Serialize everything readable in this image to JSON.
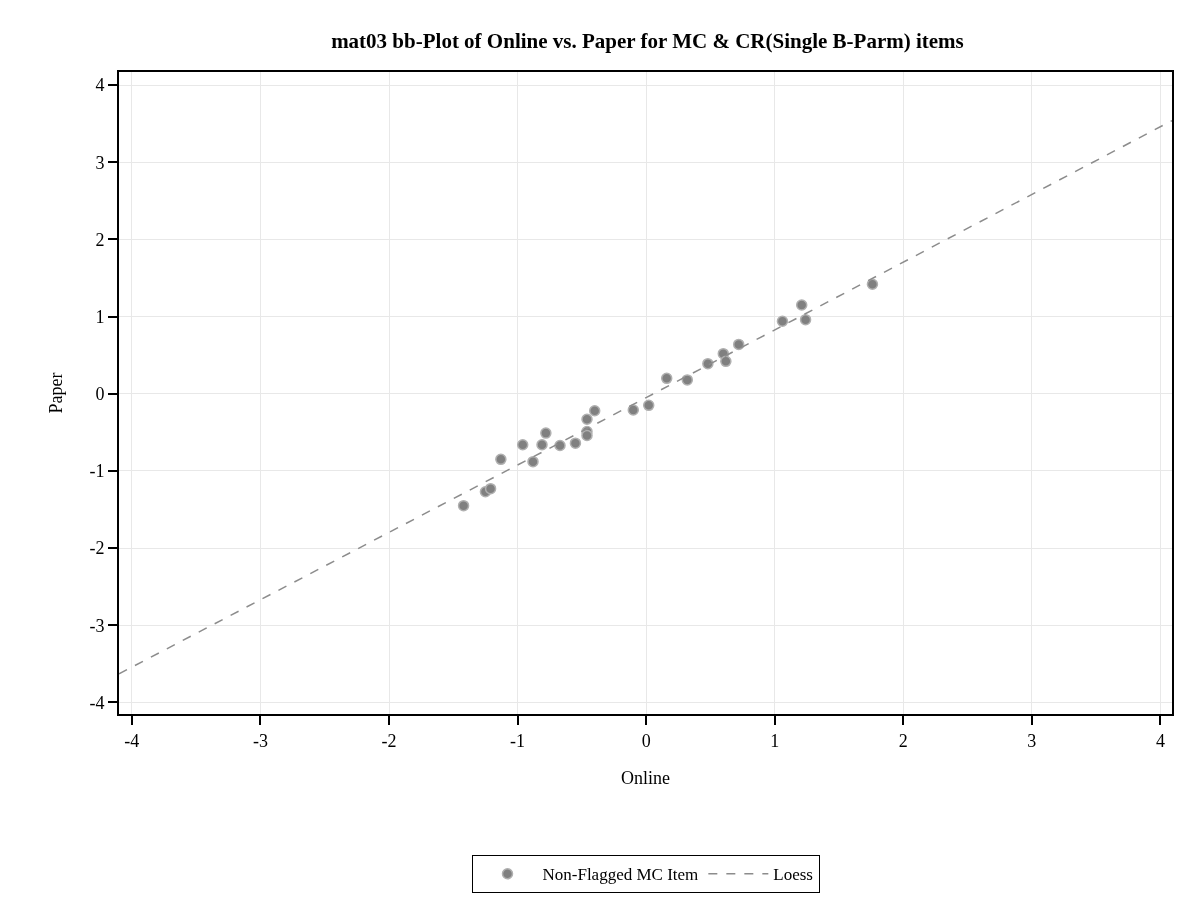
{
  "chart_data": {
    "type": "scatter",
    "title": "mat03 bb-Plot of Online vs. Paper for MC & CR(Single B-Parm) items",
    "xlabel": "Online",
    "ylabel": "Paper",
    "series": [
      {
        "name": "Non-Flagged MC Item",
        "color": "#808080",
        "marker": "circle",
        "x": [
          -1.42,
          -1.25,
          -1.21,
          -1.13,
          -0.96,
          -0.88,
          -0.81,
          -0.78,
          -0.67,
          -0.55,
          -0.46,
          -0.46,
          -0.46,
          -0.4,
          -0.1,
          0.02,
          0.16,
          0.32,
          0.48,
          0.6,
          0.62,
          0.72,
          1.06,
          1.21,
          1.24,
          1.76
        ],
        "values": [
          -1.45,
          -1.27,
          -1.23,
          -0.85,
          -0.66,
          -0.88,
          -0.66,
          -0.51,
          -0.67,
          -0.64,
          -0.33,
          -0.49,
          -0.54,
          -0.22,
          -0.21,
          -0.15,
          0.2,
          0.18,
          0.39,
          0.52,
          0.42,
          0.64,
          0.94,
          1.15,
          0.96,
          1.42
        ]
      },
      {
        "name": "Loess",
        "type": "line",
        "color": "#8c8c8c",
        "line_style": "dashed",
        "x": [
          -4.1,
          0,
          4.09
        ],
        "values": [
          -3.63,
          -0.05,
          3.54
        ]
      }
    ],
    "xlim": [
      -4.1,
      4.09
    ],
    "ylim": [
      -4.15,
      4.17
    ],
    "xticks": [
      -4,
      -3,
      -2,
      -1,
      0,
      1,
      2,
      3,
      4
    ],
    "yticks": [
      -4,
      -3,
      -2,
      -1,
      0,
      1,
      2,
      3,
      4
    ],
    "grid": true,
    "legend": "bottom"
  }
}
